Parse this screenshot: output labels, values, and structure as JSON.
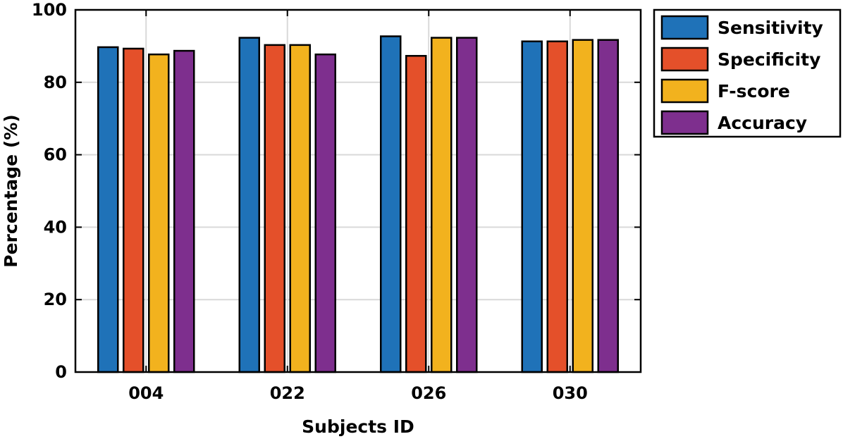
{
  "chart_data": {
    "type": "bar",
    "categories": [
      "004",
      "022",
      "026",
      "030"
    ],
    "series": [
      {
        "name": "Sensitivity",
        "color": "#1f72b8",
        "values": [
          89.7,
          92.3,
          92.7,
          91.3
        ]
      },
      {
        "name": "Specificity",
        "color": "#e4502a",
        "values": [
          89.3,
          90.3,
          87.3,
          91.3
        ]
      },
      {
        "name": "F-score",
        "color": "#f2b21e",
        "values": [
          87.7,
          90.3,
          92.3,
          91.7
        ]
      },
      {
        "name": "Accuracy",
        "color": "#7e2f8e",
        "values": [
          88.7,
          87.7,
          92.3,
          91.7
        ]
      }
    ],
    "xlabel": "Subjects ID",
    "ylabel": "Percentage (%)",
    "ylim": [
      0,
      100
    ],
    "yticks": [
      "0",
      "20",
      "40",
      "60",
      "80",
      "100"
    ],
    "grid": true,
    "legend_position": "outside-top-right"
  }
}
